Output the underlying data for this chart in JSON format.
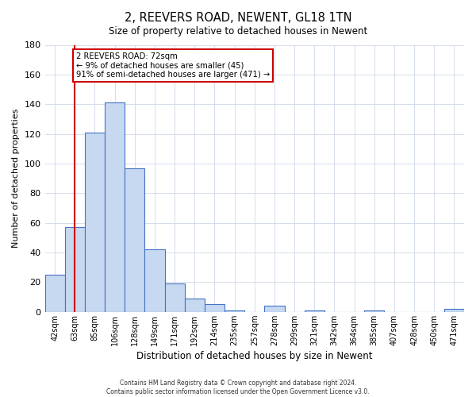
{
  "title": "2, REEVERS ROAD, NEWENT, GL18 1TN",
  "subtitle": "Size of property relative to detached houses in Newent",
  "xlabel": "Distribution of detached houses by size in Newent",
  "ylabel": "Number of detached properties",
  "bar_labels": [
    "42sqm",
    "63sqm",
    "85sqm",
    "106sqm",
    "128sqm",
    "149sqm",
    "171sqm",
    "192sqm",
    "214sqm",
    "235sqm",
    "257sqm",
    "278sqm",
    "299sqm",
    "321sqm",
    "342sqm",
    "364sqm",
    "385sqm",
    "407sqm",
    "428sqm",
    "450sqm",
    "471sqm"
  ],
  "bar_values": [
    25,
    57,
    121,
    141,
    97,
    42,
    19,
    9,
    5,
    1,
    0,
    4,
    0,
    1,
    0,
    0,
    1,
    0,
    0,
    0,
    2
  ],
  "bar_color": "#c6d9f1",
  "bar_edge_color": "#4472c4",
  "ylim": [
    0,
    180
  ],
  "yticks": [
    0,
    20,
    40,
    60,
    80,
    100,
    120,
    140,
    160,
    180
  ],
  "vline_x": 1,
  "vline_color": "#cc0000",
  "annotation_line1": "2 REEVERS ROAD: 72sqm",
  "annotation_line2": "← 9% of detached houses are smaller (45)",
  "annotation_line3": "91% of semi-detached houses are larger (471) →",
  "annotation_box_color": "#ffffff",
  "annotation_box_edge_color": "#cc0000",
  "footer_line1": "Contains HM Land Registry data © Crown copyright and database right 2024.",
  "footer_line2": "Contains public sector information licensed under the Open Government Licence v3.0."
}
